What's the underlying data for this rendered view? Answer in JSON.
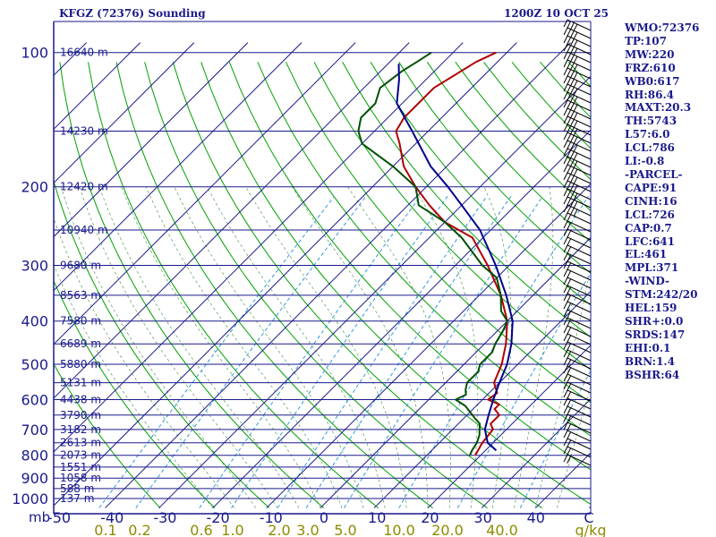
{
  "chart_data": {
    "type": "line",
    "title": "KFGZ (72376) Sounding",
    "datetime": "1200Z 10 OCT 25",
    "pressure_ticks": [
      "100",
      "200",
      "300",
      "400",
      "500",
      "600",
      "700",
      "800",
      "900",
      "1000"
    ],
    "temperature_ticks": [
      "-50",
      "-40",
      "-30",
      "-20",
      "-10",
      "0",
      "10",
      "20",
      "30",
      "40",
      "C"
    ],
    "pressure_unit": "mb",
    "mixing_ratio_ticks": [
      "0.1",
      "0.2",
      "0.6",
      "1.0",
      "2.0",
      "3.0",
      "5.0",
      "10.0",
      "20.0",
      "40.0",
      "g/kg"
    ],
    "height_levels": [
      {
        "p": 100,
        "label": "16640 m"
      },
      {
        "p": 150,
        "label": "14230 m"
      },
      {
        "p": 200,
        "label": "12420 m"
      },
      {
        "p": 250,
        "label": "10940 m"
      },
      {
        "p": 300,
        "label": "9680 m"
      },
      {
        "p": 350,
        "label": "8563 m"
      },
      {
        "p": 400,
        "label": "7580 m"
      },
      {
        "p": 450,
        "label": "6689 m"
      },
      {
        "p": 500,
        "label": "5880 m"
      },
      {
        "p": 550,
        "label": "5131 m"
      },
      {
        "p": 600,
        "label": "4438 m"
      },
      {
        "p": 650,
        "label": "3790 m"
      },
      {
        "p": 700,
        "label": "3182 m"
      },
      {
        "p": 750,
        "label": "2613 m"
      },
      {
        "p": 800,
        "label": "2073 m"
      },
      {
        "p": 850,
        "label": "1551 m"
      },
      {
        "p": 900,
        "label": "1058 m"
      },
      {
        "p": 950,
        "label": "588 m"
      },
      {
        "p": 1000,
        "label": "137 m"
      }
    ],
    "series": [
      {
        "key": "temperature",
        "color": "#b00000",
        "points": [
          [
            800,
            19
          ],
          [
            750,
            18
          ],
          [
            700,
            17.5
          ],
          [
            680,
            16
          ],
          [
            650,
            16
          ],
          [
            630,
            14
          ],
          [
            615,
            14
          ],
          [
            600,
            11
          ],
          [
            580,
            11.5
          ],
          [
            550,
            9
          ],
          [
            500,
            7
          ],
          [
            450,
            4
          ],
          [
            400,
            0
          ],
          [
            350,
            -6
          ],
          [
            300,
            -14
          ],
          [
            260,
            -22
          ],
          [
            240,
            -30
          ],
          [
            220,
            -36
          ],
          [
            200,
            -42
          ],
          [
            180,
            -48
          ],
          [
            160,
            -53
          ],
          [
            150,
            -56
          ],
          [
            140,
            -57
          ],
          [
            120,
            -57
          ],
          [
            105,
            -54
          ],
          [
            100,
            -52
          ]
        ]
      },
      {
        "key": "dewpoint",
        "color": "#005000",
        "points": [
          [
            800,
            18
          ],
          [
            780,
            17.5
          ],
          [
            750,
            17
          ],
          [
            720,
            16
          ],
          [
            700,
            15
          ],
          [
            680,
            14
          ],
          [
            660,
            12
          ],
          [
            640,
            10
          ],
          [
            620,
            8
          ],
          [
            600,
            5
          ],
          [
            585,
            6
          ],
          [
            570,
            5
          ],
          [
            550,
            4
          ],
          [
            520,
            4
          ],
          [
            500,
            3
          ],
          [
            470,
            3
          ],
          [
            450,
            2
          ],
          [
            420,
            1
          ],
          [
            400,
            0
          ],
          [
            380,
            -3
          ],
          [
            350,
            -6
          ],
          [
            320,
            -10
          ],
          [
            300,
            -15
          ],
          [
            260,
            -24
          ],
          [
            240,
            -30
          ],
          [
            220,
            -38
          ],
          [
            200,
            -42
          ],
          [
            180,
            -50
          ],
          [
            160,
            -60
          ],
          [
            150,
            -63
          ],
          [
            140,
            -65
          ],
          [
            130,
            -65
          ],
          [
            120,
            -67
          ],
          [
            110,
            -66
          ],
          [
            105,
            -65
          ],
          [
            100,
            -64
          ]
        ]
      },
      {
        "key": "parcel",
        "color": "#00008c",
        "points": [
          [
            780,
            22
          ],
          [
            750,
            19
          ],
          [
            700,
            16
          ],
          [
            650,
            14
          ],
          [
            600,
            12
          ],
          [
            550,
            10
          ],
          [
            500,
            8
          ],
          [
            450,
            5
          ],
          [
            400,
            1
          ],
          [
            350,
            -5
          ],
          [
            300,
            -12.5
          ],
          [
            250,
            -22
          ],
          [
            220,
            -30
          ],
          [
            200,
            -36
          ],
          [
            180,
            -43
          ],
          [
            150,
            -53
          ],
          [
            130,
            -61
          ],
          [
            115,
            -65
          ],
          [
            106,
            -68
          ]
        ]
      }
    ]
  },
  "indices": [
    "WMO:72376",
    "TP:107",
    "MW:220",
    "FRZ:610",
    "WB0:617",
    "RH:86.4",
    "MAXT:20.3",
    "TH:5743",
    "L57:6.0",
    "LCL:786",
    "LI:-0.8",
    "-PARCEL-",
    "CAPE:91",
    "CINH:16",
    "LCL:726",
    "CAP:0.7",
    "LFC:641",
    "EL:461",
    "MPL:371",
    "-WIND-",
    "STM:242/20",
    "HEL:159",
    "SHR+:0.0",
    "SRDS:147",
    "EHI:0.1",
    "BRN:1.4",
    "BSHR:64"
  ]
}
